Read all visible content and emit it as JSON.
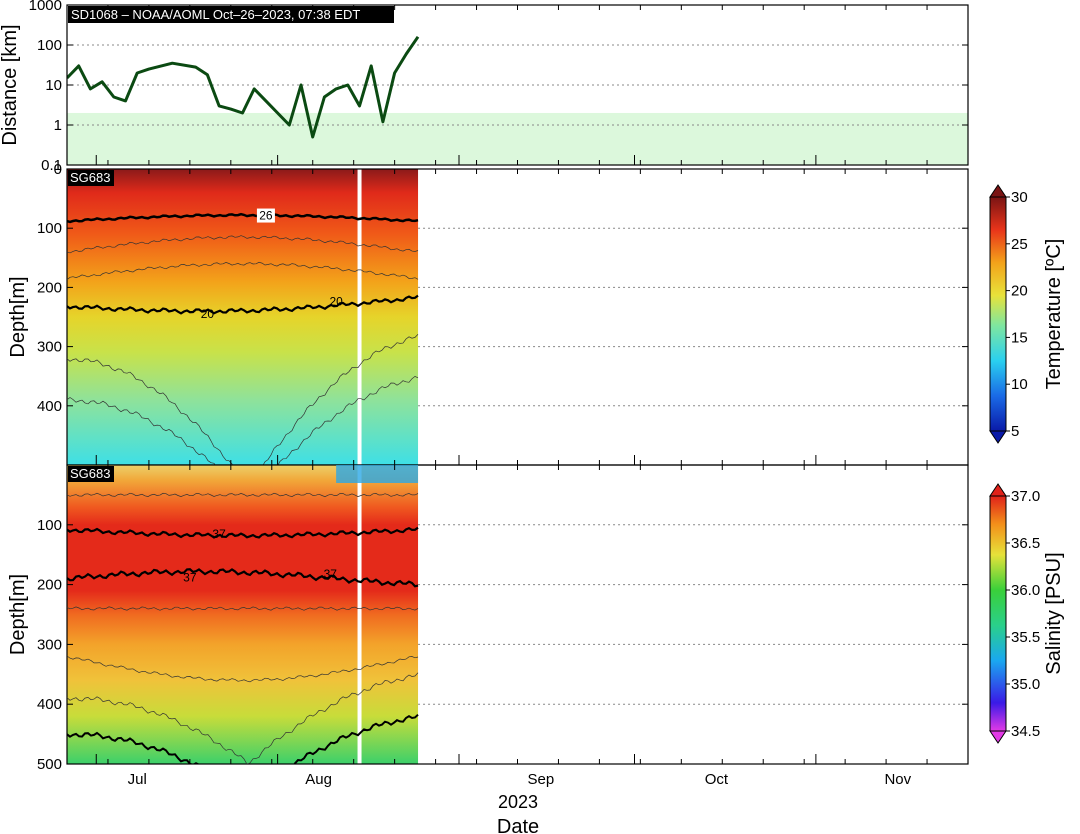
{
  "chart_data": [
    {
      "type": "line",
      "panel": "distance",
      "header": "SD1068  –  NOAA/AOML  Oct–26–2023, 07:38 EDT",
      "ylabel": "Distance [km]",
      "yscale": "log",
      "ylim": [
        0.1,
        1000
      ],
      "yticks": [
        "0.1",
        "1",
        "10",
        "100",
        "1000"
      ],
      "shaded_band": [
        0.1,
        2
      ],
      "series": [
        {
          "color": "#0b4a12",
          "x": [
            "2023-06-26",
            "2023-06-28",
            "2023-06-30",
            "2023-07-02",
            "2023-07-04",
            "2023-07-06",
            "2023-07-08",
            "2023-07-10",
            "2023-07-14",
            "2023-07-18",
            "2023-07-20",
            "2023-07-22",
            "2023-07-24",
            "2023-07-26",
            "2023-07-28",
            "2023-07-30",
            "2023-08-01",
            "2023-08-03",
            "2023-08-05",
            "2023-08-07",
            "2023-08-09",
            "2023-08-11",
            "2023-08-13",
            "2023-08-15",
            "2023-08-17",
            "2023-08-19",
            "2023-08-21",
            "2023-08-23",
            "2023-08-25"
          ],
          "y": [
            15,
            30,
            8,
            12,
            5,
            4,
            20,
            25,
            35,
            28,
            18,
            3,
            2.5,
            2,
            8,
            4,
            2,
            1,
            10,
            0.5,
            5,
            8,
            10,
            3,
            30,
            1.2,
            20,
            60,
            160
          ]
        }
      ]
    },
    {
      "type": "heatmap",
      "panel": "temperature",
      "tag": "SG683",
      "ylabel": "Depth[m]",
      "ylim": [
        0,
        500
      ],
      "yticks": [
        "0",
        "100",
        "200",
        "300",
        "400"
      ],
      "colorbar": {
        "label": "Temperature [ºC]",
        "min": 5,
        "max": 30,
        "ticks": [
          "5",
          "10",
          "15",
          "20",
          "25",
          "30"
        ]
      },
      "contour_labels": [
        "26",
        "20",
        "20"
      ],
      "data_end": "2023-08-25",
      "gap": "2023-08-15"
    },
    {
      "type": "heatmap",
      "panel": "salinity",
      "tag": "SG683",
      "ylabel": "Depth[m]",
      "ylim": [
        0,
        500
      ],
      "yticks": [
        "100",
        "200",
        "300",
        "400",
        "500"
      ],
      "colorbar": {
        "label": "Salinity [PSU]",
        "min": 34.5,
        "max": 37.0,
        "ticks": [
          "34.5",
          "35.0",
          "35.5",
          "36.0",
          "36.5",
          "37.0"
        ]
      },
      "contour_labels": [
        "37",
        "37",
        "37"
      ],
      "data_end": "2023-08-25",
      "gap": "2023-08-15"
    }
  ],
  "xaxis": {
    "start": "2023-06-26",
    "end": "2023-11-27",
    "month_ticks": [
      "Jul",
      "Aug",
      "Sep",
      "Oct",
      "Nov"
    ],
    "year": "2023",
    "label": "Date"
  }
}
